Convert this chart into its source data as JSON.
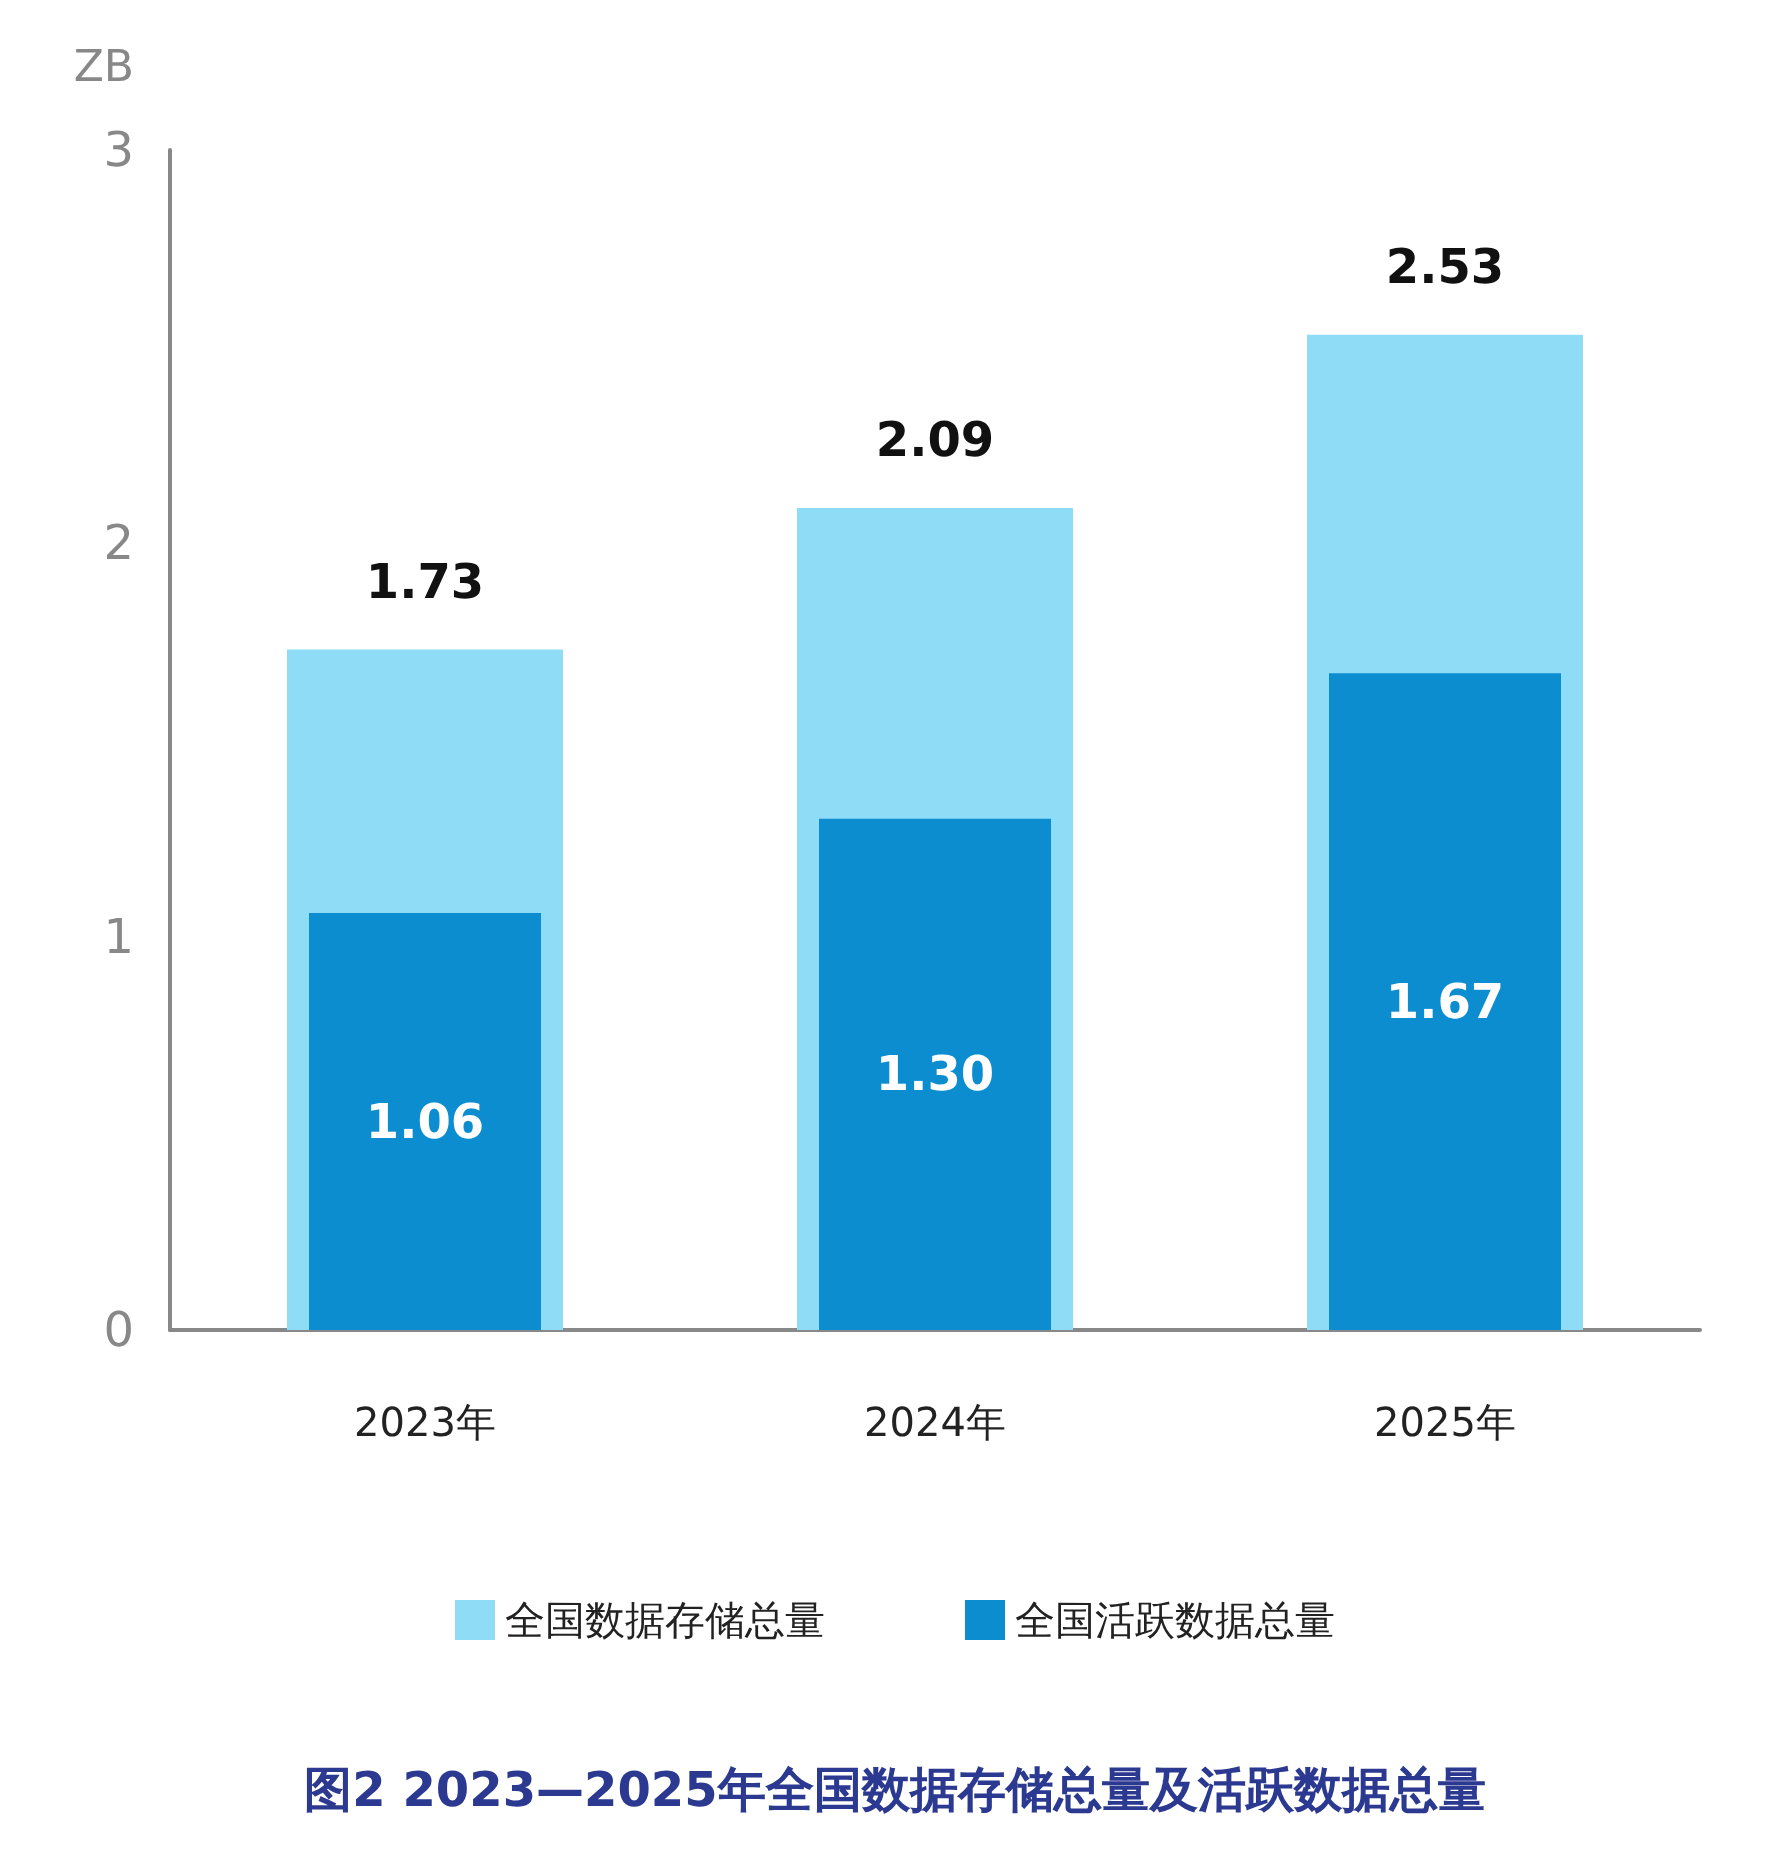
{
  "chart_data": {
    "type": "bar",
    "title": "图2 2023—2025年全国数据存储总量及活跃数据总量",
    "ylabel": "ZB",
    "categories": [
      "2023年",
      "2024年",
      "2025年"
    ],
    "series": [
      {
        "name": "全国数据存储总量",
        "color": "#8edcf6",
        "values": [
          1.73,
          2.09,
          2.53
        ],
        "value_labels": [
          "1.73",
          "2.09",
          "2.53"
        ]
      },
      {
        "name": "全国活跃数据总量",
        "color": "#0b8dd0",
        "values": [
          1.06,
          1.3,
          1.67
        ],
        "value_labels": [
          "1.06",
          "1.30",
          "1.67"
        ]
      }
    ],
    "ylim": [
      0,
      3
    ],
    "yticks": [
      0,
      1,
      2,
      3
    ],
    "grid": false,
    "legend": "bottom"
  }
}
